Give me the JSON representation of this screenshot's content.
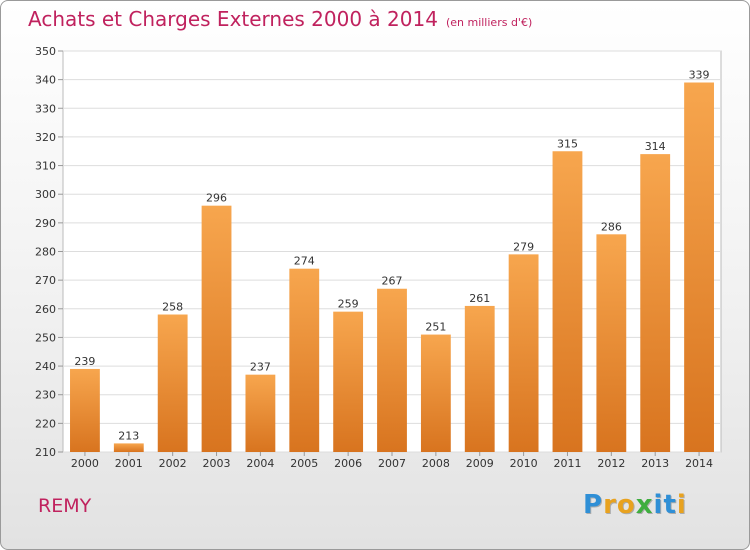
{
  "header": {
    "title": "Achats et Charges Externes 2000 à 2014",
    "subtitle": "(en milliers d'€)"
  },
  "footer": {
    "city": "REMY",
    "logo": [
      "P",
      "r",
      "o",
      "x",
      "i",
      "t",
      "i"
    ],
    "logo_colors": [
      "#2f8fd6",
      "#e8a21f",
      "#e8a21f",
      "#3fae3f",
      "#2f8fd6",
      "#2f8fd6",
      "#e8a21f"
    ]
  },
  "colors": {
    "bar_top": "#f7a64e",
    "bar_bottom": "#d8741f",
    "title": "#c0225e"
  },
  "chart_data": {
    "type": "bar",
    "title": "Achats et Charges Externes 2000 à 2014",
    "subtitle": "(en milliers d'€)",
    "categories": [
      "2000",
      "2001",
      "2002",
      "2003",
      "2004",
      "2005",
      "2006",
      "2007",
      "2008",
      "2009",
      "2010",
      "2011",
      "2012",
      "2013",
      "2014"
    ],
    "values": [
      239,
      213,
      258,
      296,
      237,
      274,
      259,
      267,
      251,
      261,
      279,
      315,
      286,
      314,
      339
    ],
    "ylim": [
      210,
      350
    ],
    "yticks": [
      210,
      220,
      230,
      240,
      250,
      260,
      270,
      280,
      290,
      300,
      310,
      320,
      330,
      340,
      350
    ],
    "grid": true,
    "legend": "none"
  }
}
